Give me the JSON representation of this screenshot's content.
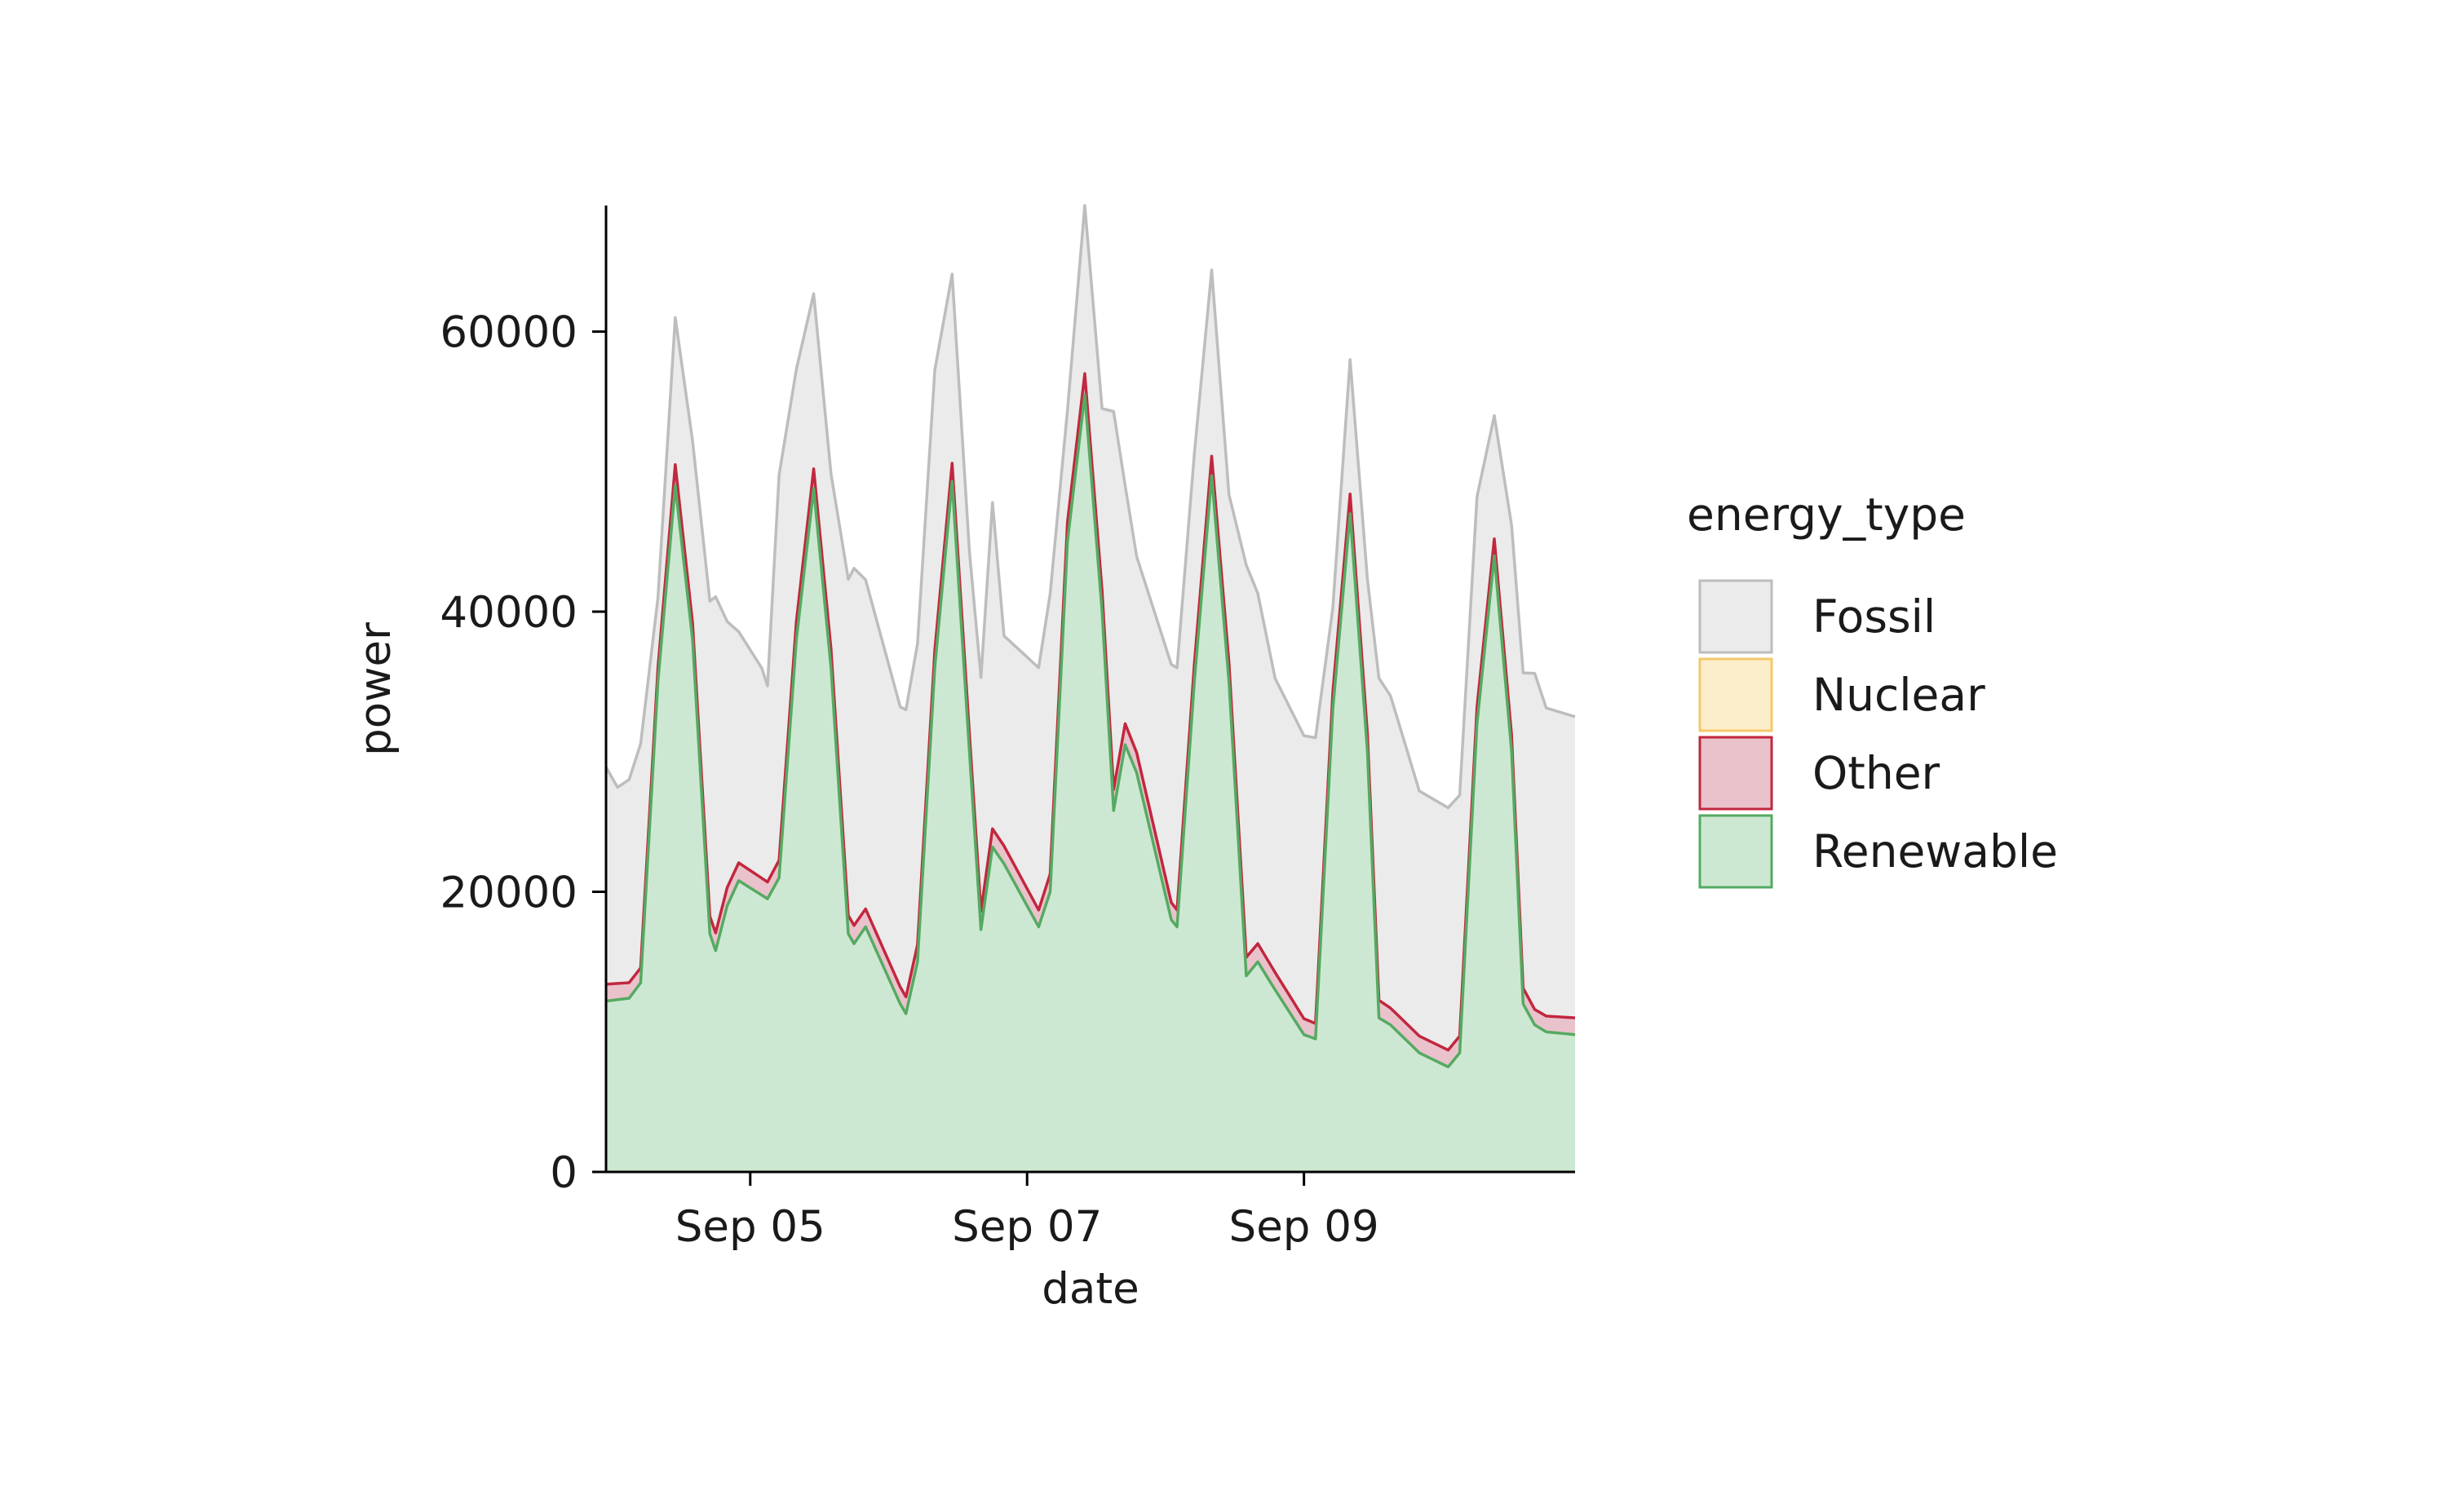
{
  "chart_data": {
    "type": "area",
    "stacked": true,
    "xlabel": "date",
    "ylabel": "power",
    "xlim": [
      "2024-09-03T23:00",
      "2024-09-10T23:00"
    ],
    "ylim": [
      0,
      69000
    ],
    "x_ticks": [
      {
        "date": "2024-09-05",
        "label": "Sep 05"
      },
      {
        "date": "2024-09-07",
        "label": "Sep 07"
      },
      {
        "date": "2024-09-09",
        "label": "Sep 09"
      }
    ],
    "y_ticks": [
      {
        "value": 0,
        "label": "0"
      },
      {
        "value": 20000,
        "label": "20000"
      },
      {
        "value": 40000,
        "label": "40000"
      },
      {
        "value": 60000,
        "label": "60000"
      }
    ],
    "grid": false,
    "legend": {
      "title": "energy_type",
      "placement": "right",
      "entries": [
        {
          "label": "Fossil",
          "fill": "#ebebeb",
          "stroke": "#bdbdbd"
        },
        {
          "label": "Nuclear",
          "fill": "#fdeecb",
          "stroke": "#f4c86a"
        },
        {
          "label": "Other",
          "fill": "#eac2cc",
          "stroke": "#c1273e"
        },
        {
          "label": "Renewable",
          "fill": "#cde8d2",
          "stroke": "#55aa62"
        }
      ]
    },
    "series": [
      {
        "name": "Renewable",
        "fill": "#cde8d2",
        "stroke": "#55aa62",
        "points": [
          [
            "2024-09-03T23:00",
            12200
          ],
          [
            "2024-09-04T03:00",
            12400
          ],
          [
            "2024-09-04T05:00",
            13500
          ],
          [
            "2024-09-04T08:00",
            35000
          ],
          [
            "2024-09-04T11:00",
            49000
          ],
          [
            "2024-09-04T14:00",
            38000
          ],
          [
            "2024-09-04T17:00",
            17000
          ],
          [
            "2024-09-04T18:00",
            15800
          ],
          [
            "2024-09-04T20:00",
            19000
          ],
          [
            "2024-09-04T22:00",
            20800
          ],
          [
            "2024-09-05T03:00",
            19500
          ],
          [
            "2024-09-05T05:00",
            21000
          ],
          [
            "2024-09-05T08:00",
            38000
          ],
          [
            "2024-09-05T11:00",
            48800
          ],
          [
            "2024-09-05T14:00",
            36000
          ],
          [
            "2024-09-05T17:00",
            17000
          ],
          [
            "2024-09-05T18:00",
            16300
          ],
          [
            "2024-09-05T20:00",
            17500
          ],
          [
            "2024-09-06T02:00",
            12000
          ],
          [
            "2024-09-06T03:00",
            11300
          ],
          [
            "2024-09-06T05:00",
            15000
          ],
          [
            "2024-09-06T08:00",
            36000
          ],
          [
            "2024-09-06T11:00",
            49300
          ],
          [
            "2024-09-06T14:00",
            30000
          ],
          [
            "2024-09-06T16:00",
            17300
          ],
          [
            "2024-09-06T18:00",
            23200
          ],
          [
            "2024-09-06T20:00",
            22000
          ],
          [
            "2024-09-07T02:00",
            17500
          ],
          [
            "2024-09-07T04:00",
            20000
          ],
          [
            "2024-09-07T07:00",
            45000
          ],
          [
            "2024-09-07T10:00",
            55500
          ],
          [
            "2024-09-07T13:00",
            40000
          ],
          [
            "2024-09-07T15:00",
            25800
          ],
          [
            "2024-09-07T17:00",
            30500
          ],
          [
            "2024-09-07T19:00",
            28500
          ],
          [
            "2024-09-08T01:00",
            18000
          ],
          [
            "2024-09-08T02:00",
            17500
          ],
          [
            "2024-09-08T05:00",
            35000
          ],
          [
            "2024-09-08T08:00",
            49700
          ],
          [
            "2024-09-08T11:00",
            35000
          ],
          [
            "2024-09-08T14:00",
            14000
          ],
          [
            "2024-09-08T16:00",
            15000
          ],
          [
            "2024-09-08T19:00",
            13000
          ],
          [
            "2024-09-09T00:00",
            9800
          ],
          [
            "2024-09-09T02:00",
            9500
          ],
          [
            "2024-09-09T05:00",
            33000
          ],
          [
            "2024-09-09T08:00",
            47000
          ],
          [
            "2024-09-09T11:00",
            30000
          ],
          [
            "2024-09-09T13:00",
            11000
          ],
          [
            "2024-09-09T15:00",
            10500
          ],
          [
            "2024-09-09T20:00",
            8500
          ],
          [
            "2024-09-10T01:00",
            7500
          ],
          [
            "2024-09-10T03:00",
            8500
          ],
          [
            "2024-09-10T06:00",
            32000
          ],
          [
            "2024-09-10T09:00",
            44000
          ],
          [
            "2024-09-10T12:00",
            30000
          ],
          [
            "2024-09-10T14:00",
            12000
          ],
          [
            "2024-09-10T16:00",
            10500
          ],
          [
            "2024-09-10T18:00",
            10000
          ],
          [
            "2024-09-10T23:00",
            9800
          ]
        ]
      },
      {
        "name": "Other",
        "fill": "#eac2cc",
        "stroke": "#c1273e",
        "points": [
          [
            "2024-09-03T23:00",
            1200
          ],
          [
            "2024-09-04T08:00",
            1000
          ],
          [
            "2024-09-04T11:00",
            1500
          ],
          [
            "2024-09-04T14:00",
            1200
          ],
          [
            "2024-09-04T20:00",
            1300
          ],
          [
            "2024-09-05T03:00",
            1200
          ],
          [
            "2024-09-05T11:00",
            1400
          ],
          [
            "2024-09-05T18:00",
            1300
          ],
          [
            "2024-09-06T03:00",
            1200
          ],
          [
            "2024-09-06T11:00",
            1300
          ],
          [
            "2024-09-06T18:00",
            1300
          ],
          [
            "2024-09-07T02:00",
            1200
          ],
          [
            "2024-09-07T10:00",
            1500
          ],
          [
            "2024-09-07T17:00",
            1500
          ],
          [
            "2024-09-08T02:00",
            1200
          ],
          [
            "2024-09-08T08:00",
            1400
          ],
          [
            "2024-09-08T16:00",
            1300
          ],
          [
            "2024-09-09T02:00",
            1100
          ],
          [
            "2024-09-09T08:00",
            1400
          ],
          [
            "2024-09-09T15:00",
            1200
          ],
          [
            "2024-09-10T01:00",
            1200
          ],
          [
            "2024-09-10T09:00",
            1200
          ],
          [
            "2024-09-10T16:00",
            1100
          ],
          [
            "2024-09-10T23:00",
            1200
          ]
        ]
      },
      {
        "name": "Fossil",
        "fill": "#ebebeb",
        "stroke": "#bdbdbd",
        "points": [
          [
            "2024-09-03T23:00",
            15500
          ],
          [
            "2024-09-04T01:00",
            14000
          ],
          [
            "2024-09-04T03:00",
            14500
          ],
          [
            "2024-09-04T05:00",
            16000
          ],
          [
            "2024-09-04T08:00",
            5000
          ],
          [
            "2024-09-04T11:00",
            10500
          ],
          [
            "2024-09-04T14:00",
            13000
          ],
          [
            "2024-09-04T17:00",
            22500
          ],
          [
            "2024-09-04T18:00",
            24000
          ],
          [
            "2024-09-04T20:00",
            19000
          ],
          [
            "2024-09-04T22:00",
            16500
          ],
          [
            "2024-09-05T02:00",
            15000
          ],
          [
            "2024-09-05T03:00",
            14000
          ],
          [
            "2024-09-05T05:00",
            27500
          ],
          [
            "2024-09-05T08:00",
            18000
          ],
          [
            "2024-09-05T11:00",
            12500
          ],
          [
            "2024-09-05T14:00",
            12500
          ],
          [
            "2024-09-05T17:00",
            24000
          ],
          [
            "2024-09-05T18:00",
            25500
          ],
          [
            "2024-09-05T20:00",
            23500
          ],
          [
            "2024-09-06T02:00",
            20000
          ],
          [
            "2024-09-06T03:00",
            20500
          ],
          [
            "2024-09-06T05:00",
            21500
          ],
          [
            "2024-09-06T08:00",
            20000
          ],
          [
            "2024-09-06T11:00",
            13500
          ],
          [
            "2024-09-06T14:00",
            13000
          ],
          [
            "2024-09-06T16:00",
            16700
          ],
          [
            "2024-09-06T18:00",
            23300
          ],
          [
            "2024-09-06T20:00",
            15000
          ],
          [
            "2024-09-07T02:00",
            17300
          ],
          [
            "2024-09-07T04:00",
            20000
          ],
          [
            "2024-09-07T07:00",
            8000
          ],
          [
            "2024-09-07T10:00",
            12000
          ],
          [
            "2024-09-07T13:00",
            13000
          ],
          [
            "2024-09-07T15:00",
            27000
          ],
          [
            "2024-09-07T17:00",
            17000
          ],
          [
            "2024-09-07T19:00",
            14000
          ],
          [
            "2024-09-08T01:00",
            17000
          ],
          [
            "2024-09-08T02:00",
            17300
          ],
          [
            "2024-09-08T05:00",
            15000
          ],
          [
            "2024-09-08T08:00",
            13300
          ],
          [
            "2024-09-08T11:00",
            12000
          ],
          [
            "2024-09-08T14:00",
            28000
          ],
          [
            "2024-09-08T16:00",
            25000
          ],
          [
            "2024-09-08T19:00",
            21000
          ],
          [
            "2024-09-09T00:00",
            20200
          ],
          [
            "2024-09-09T02:00",
            20400
          ],
          [
            "2024-09-09T05:00",
            6000
          ],
          [
            "2024-09-09T08:00",
            9600
          ],
          [
            "2024-09-09T11:00",
            11000
          ],
          [
            "2024-09-09T13:00",
            23000
          ],
          [
            "2024-09-09T15:00",
            22300
          ],
          [
            "2024-09-09T20:00",
            17500
          ],
          [
            "2024-09-10T01:00",
            17300
          ],
          [
            "2024-09-10T03:00",
            17200
          ],
          [
            "2024-09-10T06:00",
            15000
          ],
          [
            "2024-09-10T09:00",
            8800
          ],
          [
            "2024-09-10T12:00",
            15000
          ],
          [
            "2024-09-10T14:00",
            22500
          ],
          [
            "2024-09-10T16:00",
            24000
          ],
          [
            "2024-09-10T18:00",
            22000
          ],
          [
            "2024-09-10T23:00",
            21500
          ]
        ]
      }
    ]
  }
}
